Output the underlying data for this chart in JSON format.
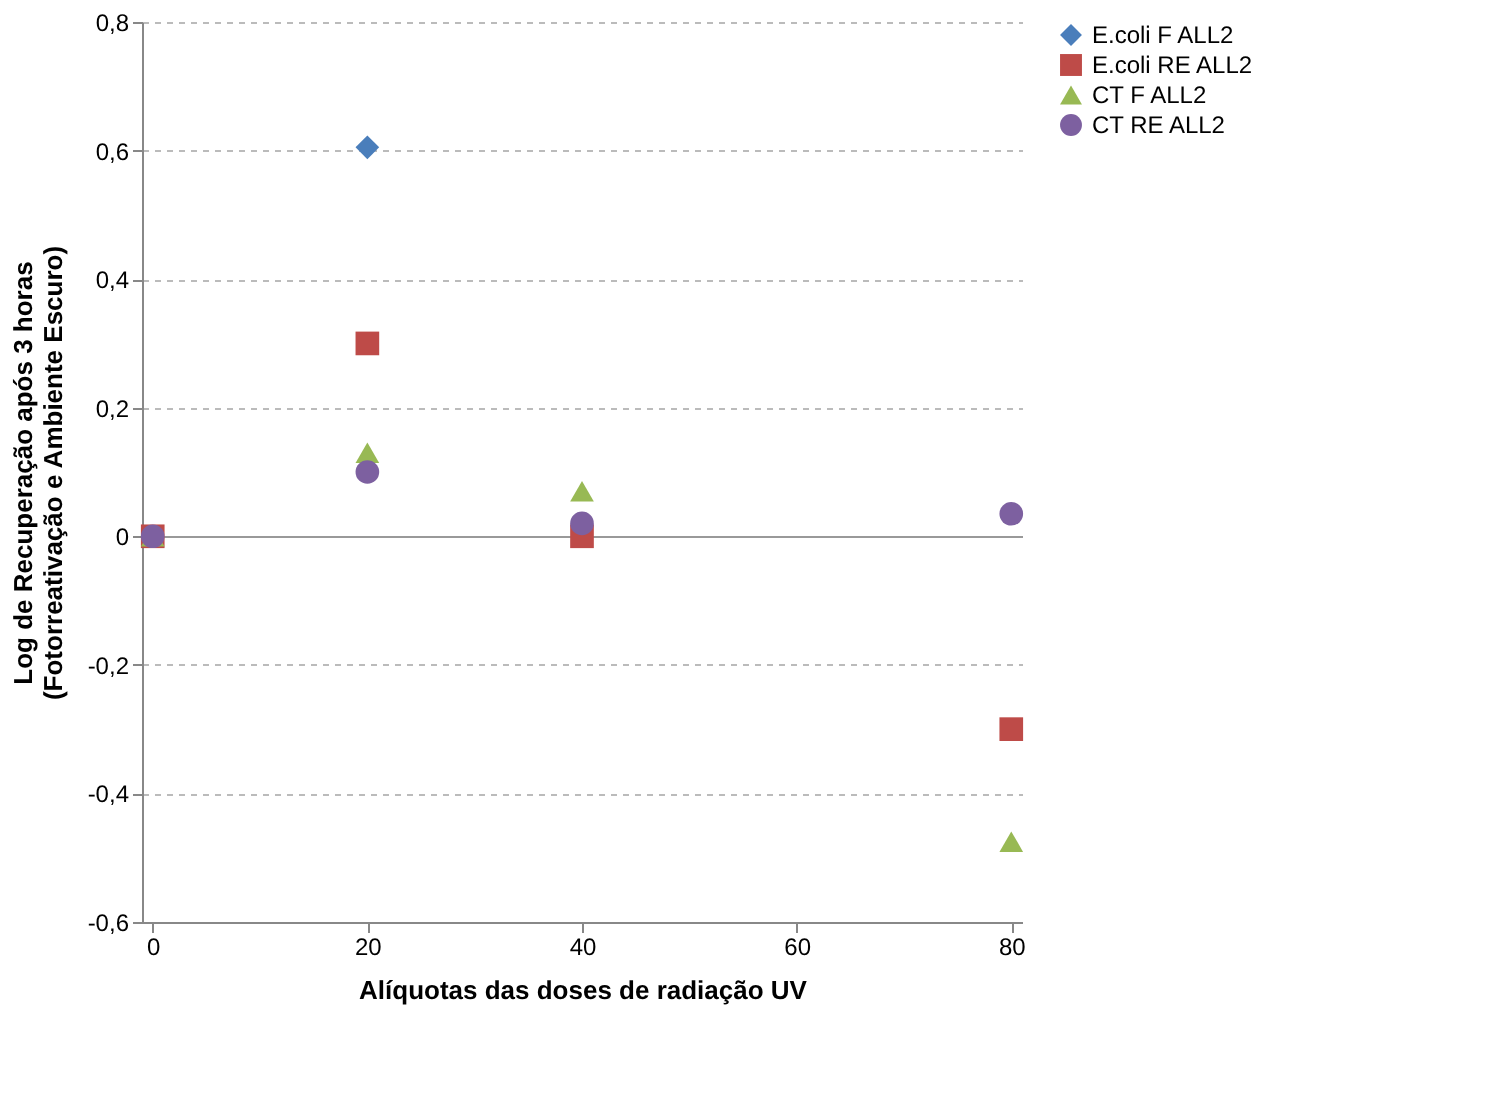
{
  "chart_data": {
    "type": "scatter",
    "xlabel": "Alíquotas das doses de radiação UV",
    "ylabel": "Log de Recuperação após 3 horas\n(Fotorreativação e Ambiente Escuro)",
    "x": [
      0,
      20,
      40,
      80
    ],
    "series": [
      {
        "name": "E.coli F ALL2",
        "color": "#4a7ebb",
        "marker": "diamond",
        "values": [
          null,
          0.605,
          null,
          null
        ]
      },
      {
        "name": "E.coli RE ALL2",
        "color": "#be4b48",
        "marker": "square",
        "values": [
          0,
          0.3,
          0,
          -0.3
        ]
      },
      {
        "name": "CT F ALL2",
        "color": "#98b954",
        "marker": "triangle",
        "values": [
          0,
          0.13,
          0.07,
          -0.475
        ]
      },
      {
        "name": "CT RE ALL2",
        "color": "#7d60a0",
        "marker": "circle",
        "values": [
          0,
          0.1,
          0.02,
          0.035
        ]
      }
    ],
    "xlim": [
      -1,
      81
    ],
    "xticks": [
      0,
      20,
      40,
      60,
      80
    ],
    "ylim": [
      -0.6,
      0.8
    ],
    "yticks": [
      {
        "value": -0.6,
        "label": "-0,6"
      },
      {
        "value": -0.4,
        "label": "-0,4"
      },
      {
        "value": -0.2,
        "label": "-0,2"
      },
      0,
      {
        "value": 0.2,
        "label": "0,2"
      },
      {
        "value": 0.4,
        "label": "0,4"
      },
      {
        "value": 0.6,
        "label": "0,6"
      },
      {
        "value": 0.8,
        "label": "0,8"
      }
    ],
    "grid": "y",
    "legend": "right"
  }
}
